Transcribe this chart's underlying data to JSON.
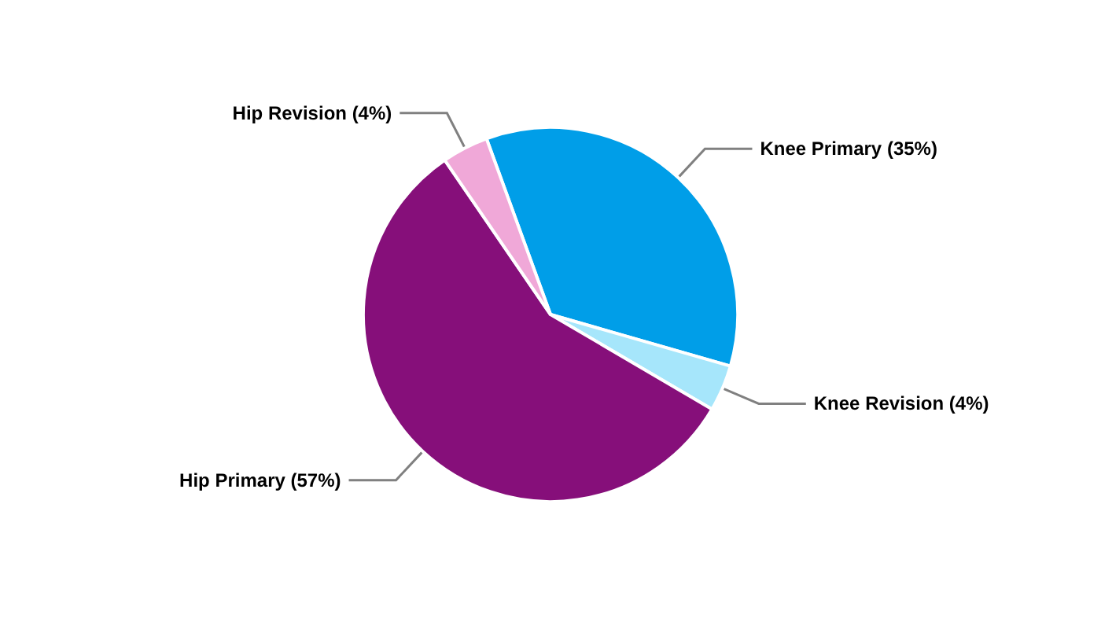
{
  "chart_data": {
    "type": "pie",
    "categories": [
      "Knee Primary",
      "Knee Revision",
      "Hip Primary",
      "Hip Revision"
    ],
    "values": [
      35,
      4,
      57,
      4
    ],
    "value_labels": [
      "(35%)",
      "(4%)",
      "(57%)",
      "(4%)"
    ],
    "colors": [
      "#009ee8",
      "#a6e6fb",
      "#860f7a",
      "#f0a8d8"
    ],
    "legend": false
  }
}
